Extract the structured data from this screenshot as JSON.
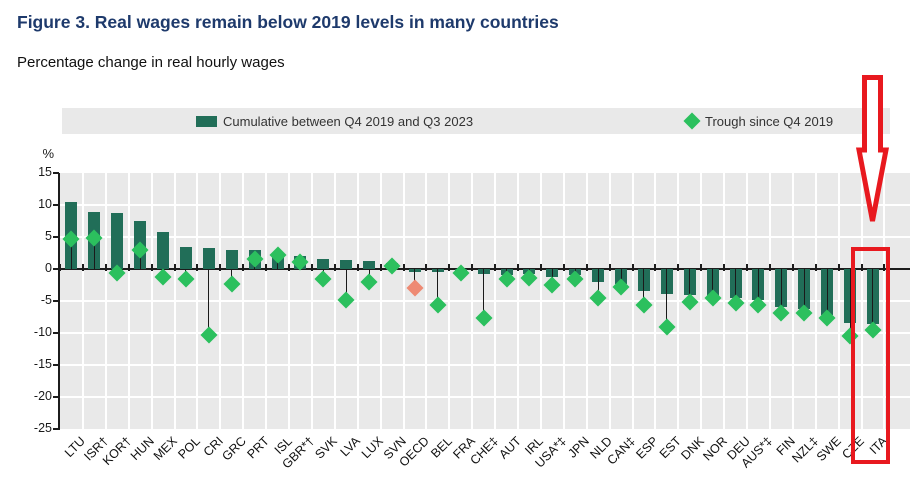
{
  "title": "Figure 3. Real wages remain below 2019 levels in many countries",
  "subtitle": "Percentage change in real hourly wages",
  "legend": {
    "bar_label": "Cumulative between Q4 2019 and Q3 2023",
    "trough_label": "Trough since Q4 2019"
  },
  "y_axis": {
    "unit_label": "%",
    "ticks": [
      15,
      10,
      5,
      0,
      -5,
      -10,
      -15,
      -20,
      -25
    ]
  },
  "colors": {
    "title": "#1e3a6c",
    "bar": "#216e58",
    "trough_marker": "#2cc05e",
    "oecd_trough_marker": "#ee8a74",
    "annotation_red": "#e8191f",
    "plot_background": "#e9e9e9",
    "gridline": "#ffffff"
  },
  "annotation": {
    "type": "red-box-and-arrow",
    "highlighted_category": "ITA"
  },
  "chart_data": {
    "type": "bar",
    "title": "Figure 3. Real wages remain below 2019 levels in many countries",
    "subtitle": "Percentage change in real hourly wages",
    "ylabel": "%",
    "ylim": [
      -25,
      15
    ],
    "grid": true,
    "legend_position": "top",
    "categories": [
      "LTU",
      "ISR†",
      "KOR†",
      "HUN",
      "MEX",
      "POL",
      "CRI",
      "GRC",
      "PRT",
      "ISL",
      "GBR*†",
      "SVK",
      "LVA",
      "LUX",
      "SVN",
      "OECD",
      "BEL",
      "FRA",
      "CHE‡",
      "AUT",
      "IRL",
      "USA*‡",
      "JPN",
      "NLD",
      "CAN‡",
      "ESP",
      "EST",
      "DNK",
      "NOR",
      "DEU",
      "AUS*‡",
      "FIN",
      "NZL‡",
      "SWE",
      "CZE",
      "ITA"
    ],
    "series": [
      {
        "name": "Cumulative between Q4 2019 and Q3 2023",
        "marker": "bar",
        "values": [
          10.4,
          8.9,
          8.7,
          7.5,
          5.8,
          3.5,
          3.3,
          3.0,
          2.9,
          2.5,
          2.1,
          1.5,
          1.4,
          1.2,
          0.9,
          -0.4,
          -0.5,
          -0.3,
          -0.8,
          -0.9,
          -0.8,
          -1.3,
          -1.0,
          -2.0,
          -2.4,
          -3.5,
          -3.9,
          -4.1,
          -4.3,
          -4.5,
          -4.8,
          -5.9,
          -6.3,
          -7.2,
          -8.4,
          -8.6
        ]
      },
      {
        "name": "Trough since Q4 2019",
        "marker": "diamond",
        "values": [
          4.7,
          4.9,
          -0.7,
          3.0,
          -1.2,
          -1.6,
          -10.3,
          -2.3,
          1.5,
          2.2,
          1.1,
          -1.5,
          -4.8,
          -2.1,
          0.5,
          -2.9,
          -5.6,
          -0.6,
          -7.6,
          -1.6,
          -1.4,
          -2.5,
          -1.5,
          -4.6,
          -2.8,
          -5.6,
          -9.0,
          -5.2,
          -4.5,
          -5.3,
          -5.6,
          -6.8,
          -6.8,
          -7.6,
          -10.4,
          -9.6
        ]
      }
    ],
    "special_marker_category": "OECD",
    "highlighted_category": "ITA"
  }
}
